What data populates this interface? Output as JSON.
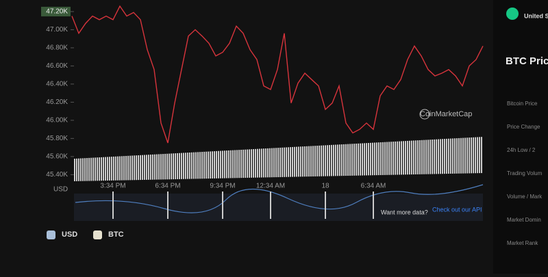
{
  "chart_data": {
    "type": "line",
    "y_label": "USD",
    "categories": [
      null,
      null,
      null,
      null,
      null,
      null,
      "3:34 PM",
      null,
      null,
      null,
      null,
      null,
      null,
      null,
      "6:34 PM",
      null,
      null,
      null,
      null,
      null,
      null,
      null,
      "9:34 PM",
      null,
      null,
      null,
      null,
      null,
      null,
      "12:34 AM",
      null,
      null,
      null,
      null,
      null,
      null,
      null,
      "18",
      null,
      null,
      null,
      null,
      null,
      null,
      "6:34 AM",
      null,
      null,
      null,
      null,
      null,
      null,
      null,
      null,
      null,
      null,
      null,
      null,
      null,
      null,
      null,
      null
    ],
    "series": [
      {
        "name": "USD",
        "color": "#d8343c",
        "values": [
          47150,
          46960,
          47070,
          47150,
          47110,
          47150,
          47110,
          47260,
          47150,
          47190,
          47110,
          46780,
          46560,
          45970,
          45750,
          46190,
          46560,
          46930,
          47000,
          46930,
          46850,
          46710,
          46750,
          46850,
          47040,
          46960,
          46780,
          46670,
          46380,
          46340,
          46560,
          46960,
          46190,
          46410,
          46520,
          46450,
          46380,
          46120,
          46190,
          46380,
          45970,
          45860,
          45900,
          45970,
          45900,
          46270,
          46380,
          46340,
          46450,
          46670,
          46820,
          46710,
          46560,
          46490,
          46520,
          46560,
          46490,
          46380,
          46600,
          46670,
          46820
        ]
      }
    ],
    "legend": [
      "USD",
      "BTC"
    ],
    "ylim": [
      45350,
      47290
    ],
    "yticks": [
      {
        "value": 47200,
        "label": "47.20K"
      },
      {
        "value": 47000,
        "label": "47.00K"
      },
      {
        "value": 46800,
        "label": "46.80K"
      },
      {
        "value": 46600,
        "label": "46.60K"
      },
      {
        "value": 46400,
        "label": "46.40K"
      },
      {
        "value": 46200,
        "label": "46.20K"
      },
      {
        "value": 46000,
        "label": "46.00K"
      },
      {
        "value": 45800,
        "label": "45.80K"
      },
      {
        "value": 45600,
        "label": "45.60K"
      },
      {
        "value": 45400,
        "label": "45.40K"
      }
    ],
    "watermark": "CoinMarketCap",
    "footer_note": "Want more data?",
    "footer_link": "Check out our API"
  },
  "panel": {
    "region": "United St",
    "title": "BTC Pric",
    "rows": [
      "Bitcoin Price",
      "Price Change",
      "24h Low / 2",
      "Trading Volum",
      "Volume / Mark",
      "Market Domin",
      "Market Rank"
    ]
  }
}
